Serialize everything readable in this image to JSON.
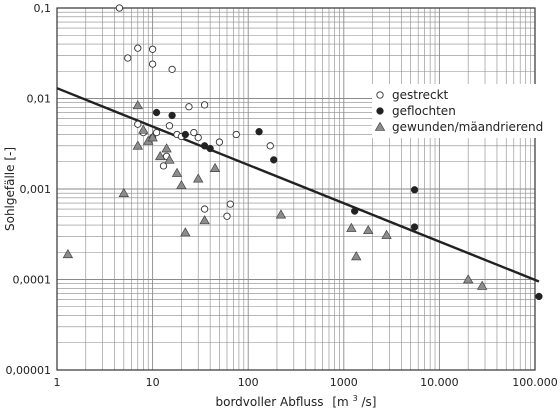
{
  "chart_data": {
    "type": "scatter",
    "xscale": "log",
    "yscale": "log",
    "xlim": [
      1,
      100000
    ],
    "ylim": [
      1e-05,
      0.1
    ],
    "grid": true,
    "xlabel_main": "bordvoller Abfluss",
    "xlabel_unit_pre": "[m",
    "xlabel_unit_sup": "3",
    "xlabel_unit_post": "/s]",
    "ylabel": "Sohlgefälle  [-]",
    "legend_position": "top-right",
    "x_tick_labels": [
      "1",
      "10",
      "100",
      "1000",
      "10.000",
      "100.000"
    ],
    "y_tick_labels": [
      "0,1",
      "0,01",
      "0,001",
      "0,0001",
      "0,00001"
    ],
    "colors": {
      "grid": "#8a8a8a",
      "frame": "#333333",
      "line": "#222222",
      "filled": "#222222",
      "triangle": "#8c8c8c",
      "triangle_stroke": "#444444"
    },
    "series": [
      {
        "name": "gestreckt",
        "marker": "open-circle",
        "points": [
          [
            4.5,
            0.1
          ],
          [
            5.5,
            0.028
          ],
          [
            7,
            0.036
          ],
          [
            10,
            0.035
          ],
          [
            10,
            0.024
          ],
          [
            16,
            0.021
          ],
          [
            7,
            0.0052
          ],
          [
            8,
            0.0042
          ],
          [
            10,
            0.0037
          ],
          [
            11,
            0.0042
          ],
          [
            13,
            0.0018
          ],
          [
            14,
            0.0023
          ],
          [
            15,
            0.005
          ],
          [
            18,
            0.004
          ],
          [
            20,
            0.0038
          ],
          [
            24,
            0.0081
          ],
          [
            27,
            0.0042
          ],
          [
            30,
            0.0037
          ],
          [
            35,
            0.0085
          ],
          [
            50,
            0.0033
          ],
          [
            75,
            0.004
          ],
          [
            170,
            0.003
          ],
          [
            35,
            0.0006
          ],
          [
            60,
            0.0005
          ],
          [
            65,
            0.00068
          ]
        ]
      },
      {
        "name": "geflochten",
        "marker": "filled-circle",
        "points": [
          [
            11,
            0.007
          ],
          [
            16,
            0.0065
          ],
          [
            22,
            0.004
          ],
          [
            35,
            0.003
          ],
          [
            40,
            0.0028
          ],
          [
            130,
            0.0043
          ],
          [
            185,
            0.0021
          ],
          [
            1300,
            0.00057
          ],
          [
            5500,
            0.00098
          ],
          [
            5500,
            0.00038
          ],
          [
            110000,
            6.5e-05
          ]
        ]
      },
      {
        "name": "gewunden/mäandrierend",
        "marker": "triangle",
        "points": [
          [
            1.3,
            0.00019
          ],
          [
            5,
            0.0009
          ],
          [
            7,
            0.0084
          ],
          [
            7,
            0.003
          ],
          [
            8,
            0.0045
          ],
          [
            9,
            0.0034
          ],
          [
            10,
            0.0037
          ],
          [
            12,
            0.0023
          ],
          [
            14,
            0.0028
          ],
          [
            15,
            0.0021
          ],
          [
            18,
            0.0015
          ],
          [
            20,
            0.0011
          ],
          [
            22,
            0.00033
          ],
          [
            30,
            0.0013
          ],
          [
            35,
            0.00045
          ],
          [
            45,
            0.0017
          ],
          [
            220,
            0.00052
          ],
          [
            1200,
            0.00037
          ],
          [
            1350,
            0.00018
          ],
          [
            1800,
            0.00035
          ],
          [
            2800,
            0.00031
          ],
          [
            20000,
            0.0001
          ],
          [
            28000,
            8.5e-05
          ]
        ]
      }
    ],
    "trend_line": [
      [
        1,
        0.013
      ],
      [
        110000,
        9.5e-05
      ]
    ]
  }
}
